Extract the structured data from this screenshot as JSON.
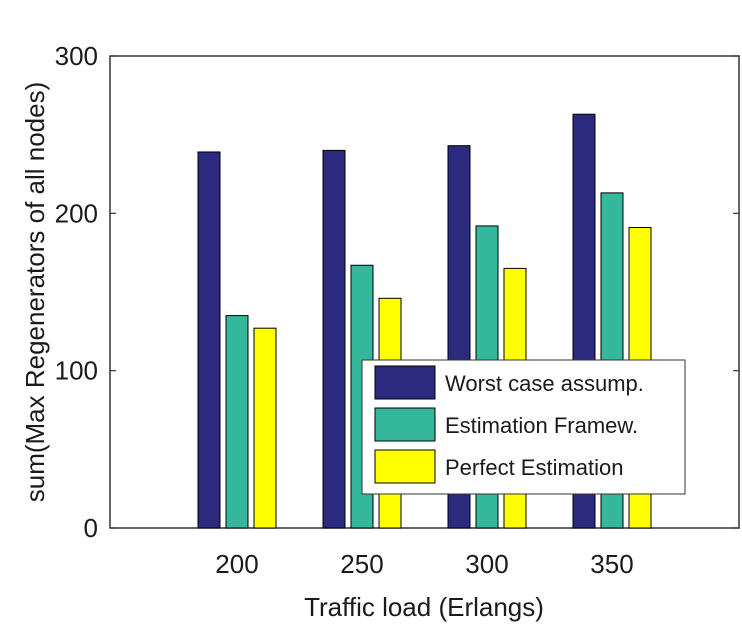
{
  "chart_data": {
    "type": "bar",
    "title": "",
    "xlabel": "Traffic load (Erlangs)",
    "ylabel": "sum(Max Regenerators of all nodes)",
    "categories": [
      "200",
      "250",
      "300",
      "350"
    ],
    "ylim": [
      0,
      300
    ],
    "yticks": [
      0,
      100,
      200,
      300
    ],
    "grid": false,
    "legend_position": "bottom-right",
    "series": [
      {
        "name": "Worst case assump.",
        "color": "#2b2a7e",
        "values": [
          239,
          240,
          243,
          263
        ]
      },
      {
        "name": "Estimation Framew.",
        "color": "#35b79b",
        "values": [
          135,
          167,
          192,
          213
        ]
      },
      {
        "name": "Perfect Estimation",
        "color": "#ffff00",
        "values": [
          127,
          146,
          165,
          191
        ]
      }
    ]
  }
}
